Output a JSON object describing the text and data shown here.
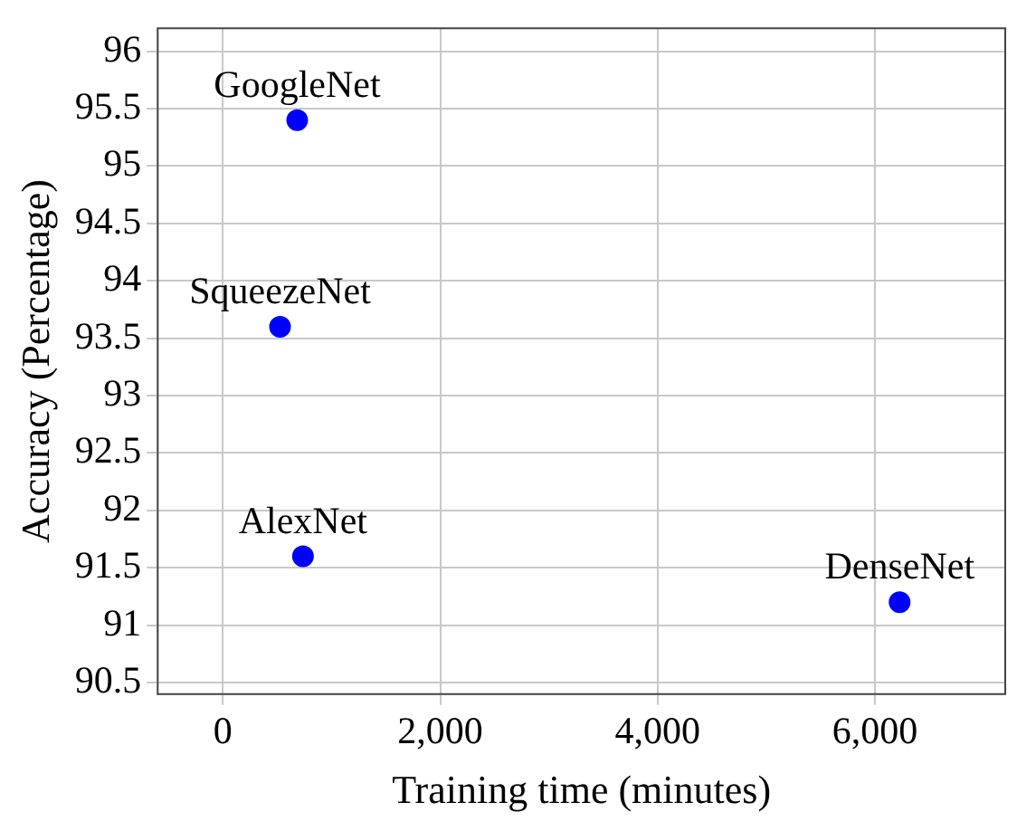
{
  "chart_data": {
    "type": "scatter",
    "xlabel": "Training time (minutes)",
    "ylabel": "Accuracy (Percentage)",
    "x": [
      684,
      526,
      737,
      6228
    ],
    "series": [
      {
        "color": "#0000ff",
        "values": [
          95.4,
          93.6,
          91.6,
          91.2
        ]
      }
    ],
    "xlim": [
      -600,
      7200
    ],
    "ylim": [
      90.4,
      96.2
    ],
    "xticks": [
      0,
      {
        "value": 2000,
        "label": "2,000"
      },
      {
        "value": 4000,
        "label": "4,000"
      },
      {
        "value": 6000,
        "label": "6,000"
      }
    ],
    "yticks": [
      90.5,
      91,
      91.5,
      92,
      92.5,
      93,
      93.5,
      94,
      94.5,
      95,
      95.5,
      96
    ],
    "grid": true,
    "marker": "circle",
    "legend": false,
    "annotations": [
      {
        "text": "GoogleNet",
        "x": 684,
        "y": 95.4
      },
      {
        "text": "SqueezeNet",
        "x": 526,
        "y": 93.6
      },
      {
        "text": "AlexNet",
        "x": 737,
        "y": 91.6
      },
      {
        "text": "DenseNet",
        "x": 6228,
        "y": 91.2
      }
    ]
  }
}
